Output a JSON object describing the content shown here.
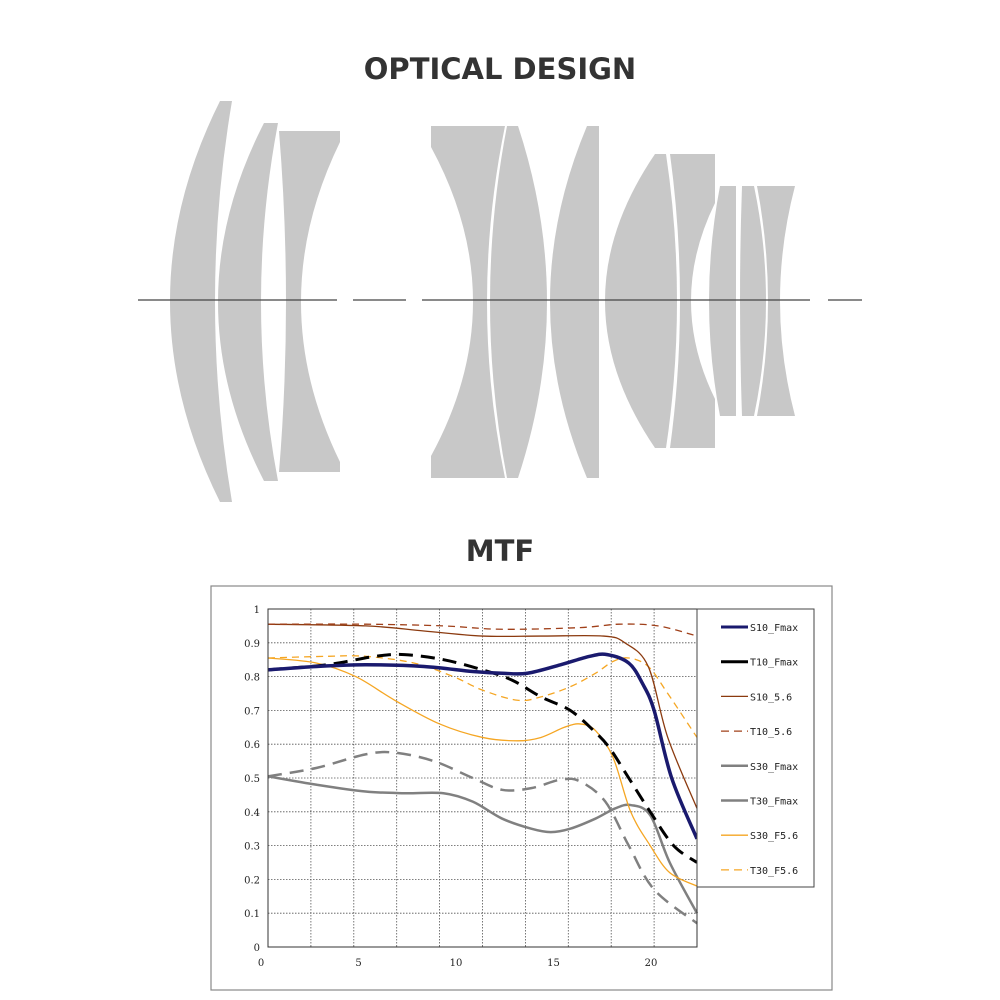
{
  "optical_design": {
    "title": "OPTICAL DESIGN",
    "lens_color": "#c8c8c8",
    "axis_color": "#444444"
  },
  "mtf": {
    "title": "MTF"
  },
  "chart_data": {
    "type": "line",
    "title": "MTF",
    "xlabel": "",
    "ylabel": "",
    "xlim": [
      0,
      22
    ],
    "ylim": [
      0,
      1
    ],
    "x_ticks": [
      0,
      5,
      10,
      15,
      20
    ],
    "y_ticks": [
      0,
      0.1,
      0.2,
      0.3,
      0.4,
      0.5,
      0.6,
      0.7,
      0.8,
      0.9,
      1
    ],
    "grid": true,
    "legend_position": "right",
    "series": [
      {
        "name": "S10_Fmax",
        "color": "#1a1a6e",
        "dash": false,
        "width": 3.5,
        "points": [
          [
            0,
            0.82
          ],
          [
            2.5,
            0.83
          ],
          [
            5,
            0.835
          ],
          [
            8,
            0.83
          ],
          [
            10.5,
            0.815
          ],
          [
            12,
            0.81
          ],
          [
            13.3,
            0.81
          ],
          [
            15,
            0.835
          ],
          [
            16.5,
            0.86
          ],
          [
            17.4,
            0.865
          ],
          [
            18.5,
            0.84
          ],
          [
            19.2,
            0.78
          ],
          [
            19.8,
            0.7
          ],
          [
            20.7,
            0.5
          ],
          [
            22,
            0.32
          ]
        ]
      },
      {
        "name": "T10_Fmax",
        "color": "#000000",
        "dash": true,
        "width": 3,
        "points": [
          [
            0,
            0.82
          ],
          [
            3,
            0.835
          ],
          [
            5.5,
            0.86
          ],
          [
            7,
            0.865
          ],
          [
            9,
            0.85
          ],
          [
            11,
            0.82
          ],
          [
            12.5,
            0.79
          ],
          [
            14,
            0.74
          ],
          [
            15.5,
            0.7
          ],
          [
            16.7,
            0.64
          ],
          [
            17.5,
            0.59
          ],
          [
            18.5,
            0.5
          ],
          [
            19.6,
            0.4
          ],
          [
            20.8,
            0.3
          ],
          [
            22,
            0.25
          ]
        ]
      },
      {
        "name": "S10_5.6",
        "color": "#8b3a0f",
        "dash": false,
        "width": 1.3,
        "points": [
          [
            0,
            0.955
          ],
          [
            5,
            0.95
          ],
          [
            8,
            0.935
          ],
          [
            11,
            0.92
          ],
          [
            14,
            0.92
          ],
          [
            17.2,
            0.92
          ],
          [
            18.3,
            0.9
          ],
          [
            19.5,
            0.83
          ],
          [
            20.5,
            0.62
          ],
          [
            22,
            0.41
          ]
        ]
      },
      {
        "name": "T10_5.6",
        "color": "#a0401a",
        "dash": true,
        "width": 1.3,
        "points": [
          [
            0,
            0.955
          ],
          [
            5,
            0.955
          ],
          [
            9,
            0.95
          ],
          [
            12,
            0.94
          ],
          [
            16,
            0.945
          ],
          [
            18,
            0.955
          ],
          [
            20,
            0.95
          ],
          [
            22,
            0.92
          ]
        ]
      },
      {
        "name": "S30_Fmax",
        "color": "#808080",
        "dash": false,
        "width": 2.5,
        "points": [
          [
            0,
            0.505
          ],
          [
            2.5,
            0.48
          ],
          [
            5,
            0.46
          ],
          [
            7,
            0.455
          ],
          [
            9,
            0.455
          ],
          [
            10.5,
            0.43
          ],
          [
            12,
            0.38
          ],
          [
            13.5,
            0.35
          ],
          [
            14.5,
            0.34
          ],
          [
            15.5,
            0.35
          ],
          [
            16.8,
            0.38
          ],
          [
            17.8,
            0.41
          ],
          [
            18.6,
            0.42
          ],
          [
            19.6,
            0.39
          ],
          [
            20.6,
            0.25
          ],
          [
            22,
            0.1
          ]
        ]
      },
      {
        "name": "T30_Fmax",
        "color": "#808080",
        "dash": true,
        "width": 2.5,
        "points": [
          [
            0,
            0.505
          ],
          [
            2.5,
            0.53
          ],
          [
            5,
            0.57
          ],
          [
            6.5,
            0.575
          ],
          [
            8.5,
            0.55
          ],
          [
            10.5,
            0.5
          ],
          [
            12,
            0.465
          ],
          [
            13.5,
            0.47
          ],
          [
            15,
            0.495
          ],
          [
            16,
            0.49
          ],
          [
            17.3,
            0.43
          ],
          [
            18.5,
            0.3
          ],
          [
            19.8,
            0.17
          ],
          [
            22,
            0.07
          ]
        ]
      },
      {
        "name": "S30_F5.6",
        "color": "#f5a623",
        "dash": false,
        "width": 1.3,
        "points": [
          [
            0,
            0.855
          ],
          [
            2.5,
            0.84
          ],
          [
            4.5,
            0.8
          ],
          [
            6.5,
            0.73
          ],
          [
            8.8,
            0.66
          ],
          [
            11,
            0.62
          ],
          [
            12.8,
            0.61
          ],
          [
            14,
            0.62
          ],
          [
            15.2,
            0.65
          ],
          [
            16,
            0.66
          ],
          [
            16.8,
            0.64
          ],
          [
            17.7,
            0.56
          ],
          [
            18.6,
            0.4
          ],
          [
            19.6,
            0.3
          ],
          [
            20.6,
            0.22
          ],
          [
            22,
            0.18
          ]
        ]
      },
      {
        "name": "T30_F5.6",
        "color": "#f5a623",
        "dash": true,
        "width": 1.3,
        "points": [
          [
            0,
            0.855
          ],
          [
            3,
            0.86
          ],
          [
            5,
            0.86
          ],
          [
            7.5,
            0.84
          ],
          [
            9.5,
            0.8
          ],
          [
            11,
            0.76
          ],
          [
            12.8,
            0.73
          ],
          [
            14,
            0.74
          ],
          [
            15.5,
            0.77
          ],
          [
            16.8,
            0.81
          ],
          [
            17.7,
            0.845
          ],
          [
            18.5,
            0.855
          ],
          [
            19.5,
            0.83
          ],
          [
            20.5,
            0.75
          ],
          [
            22,
            0.62
          ]
        ]
      }
    ]
  }
}
